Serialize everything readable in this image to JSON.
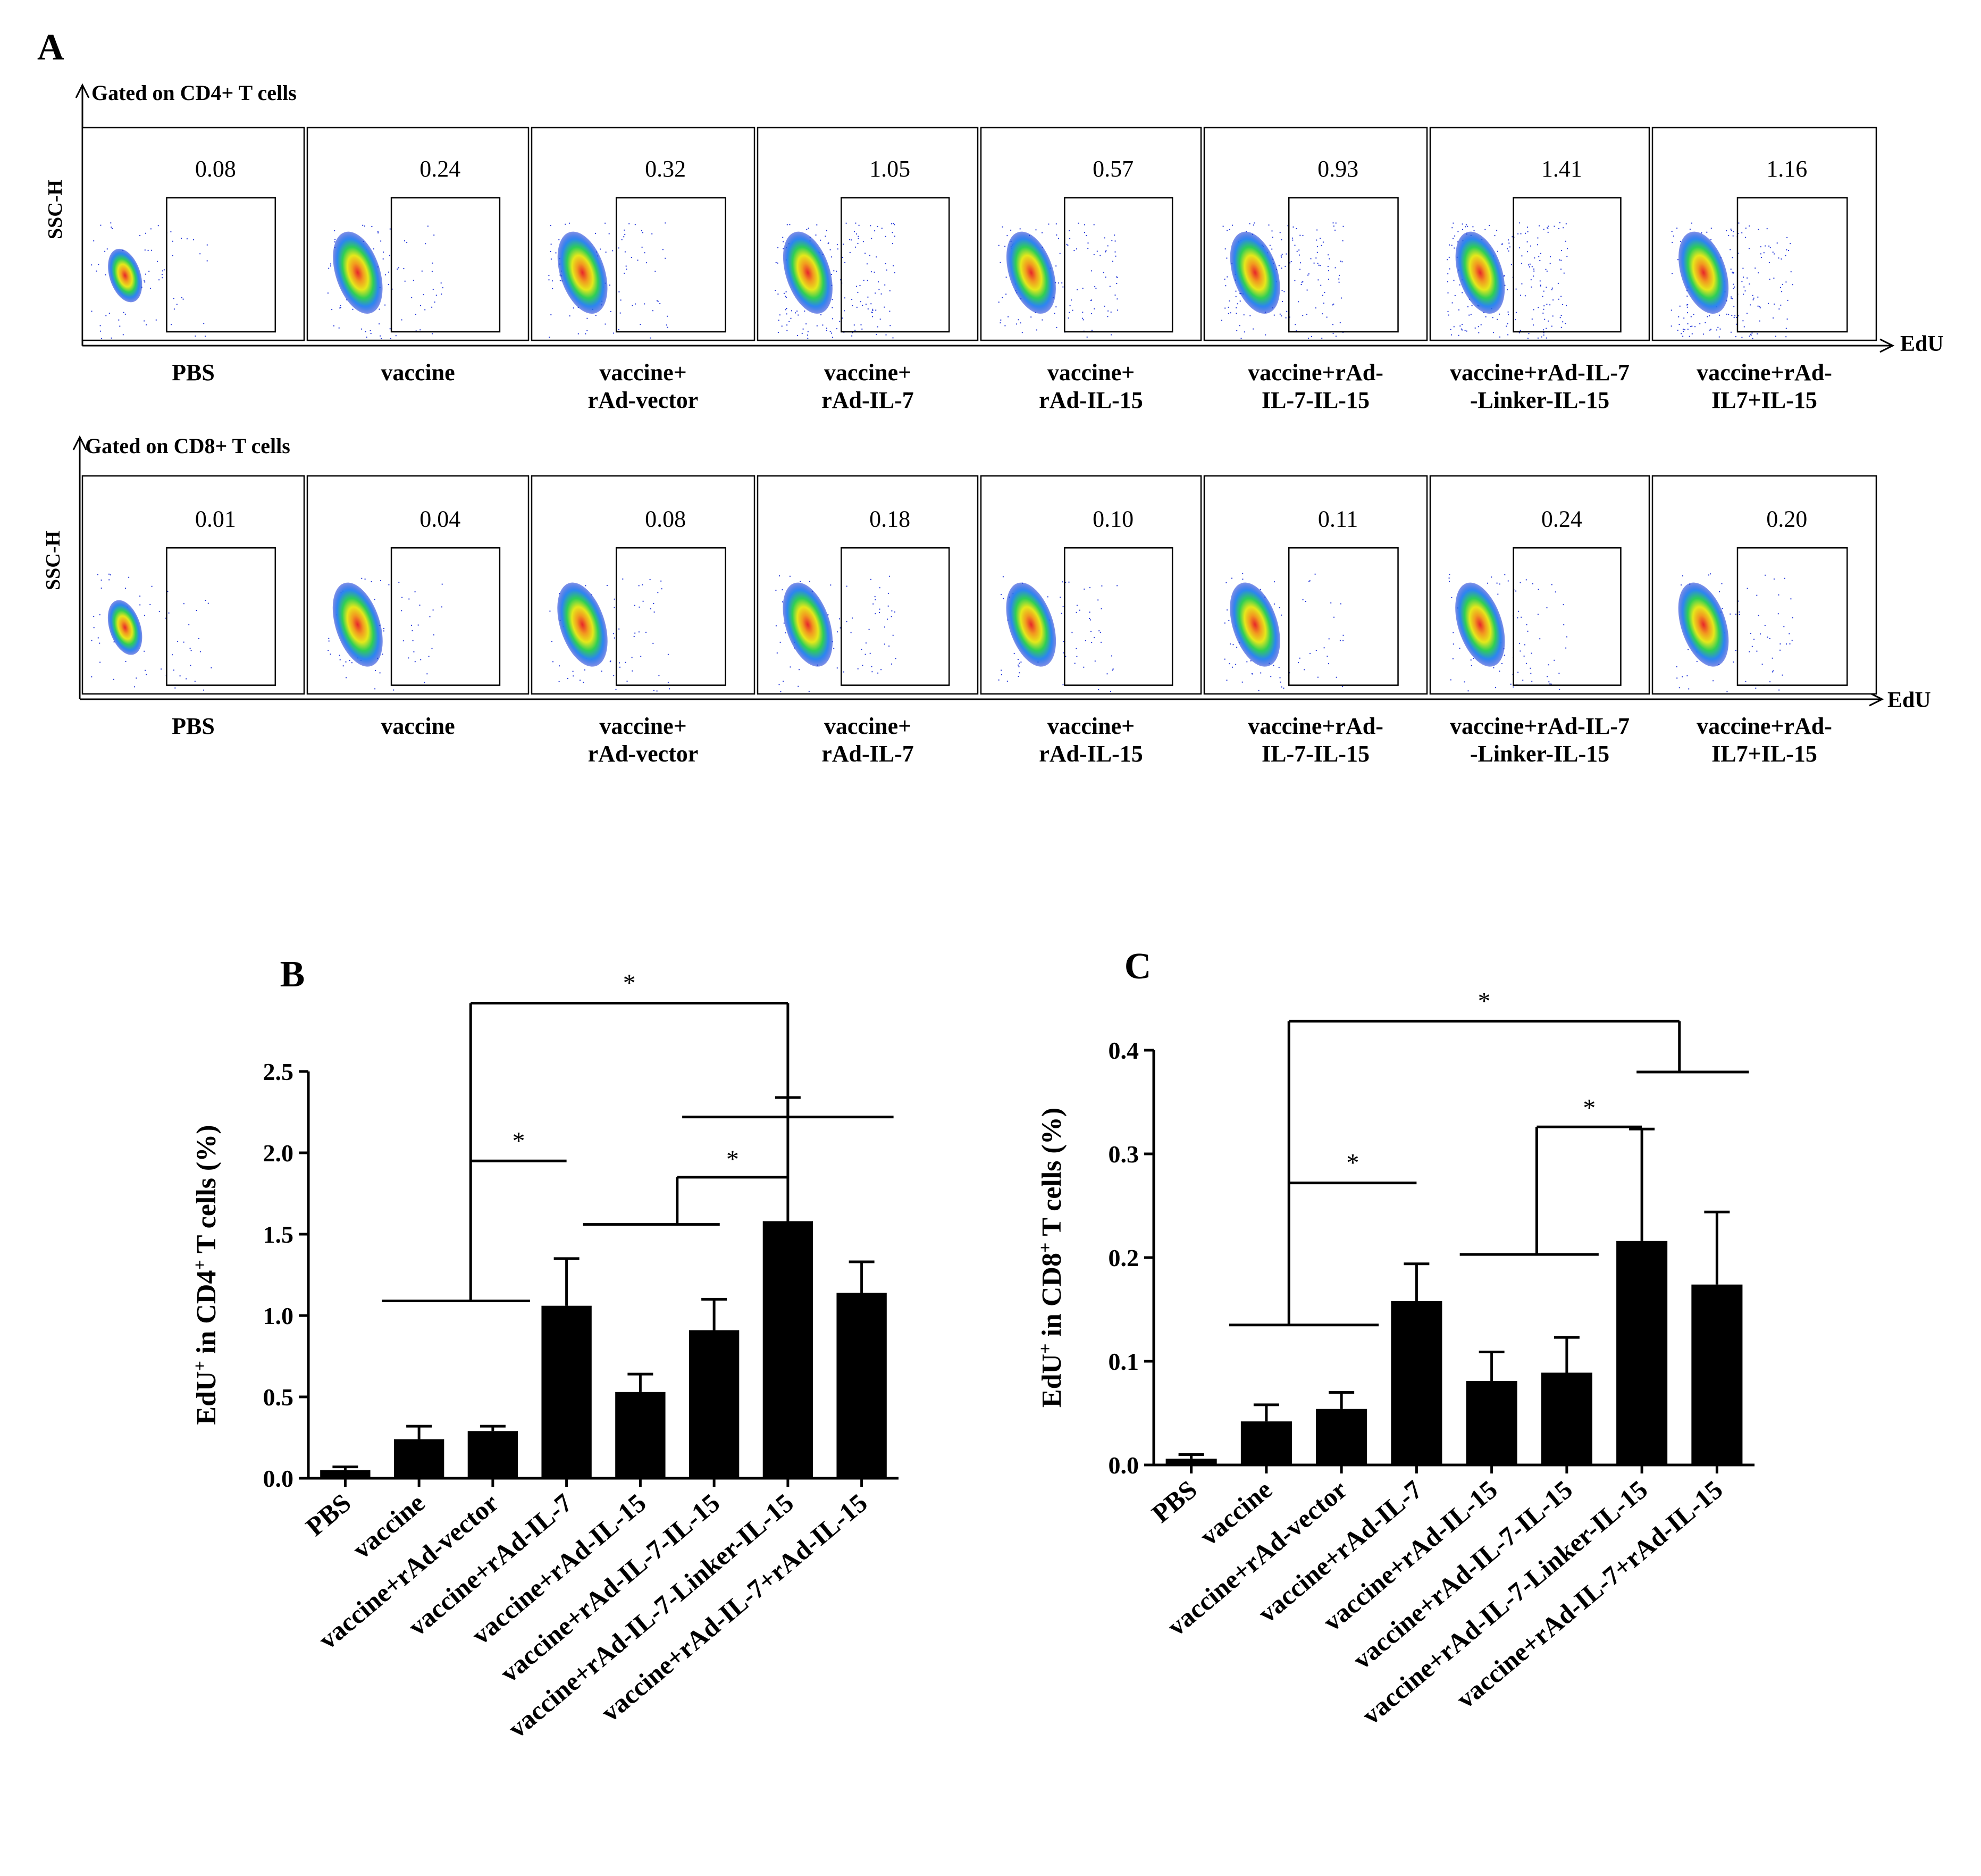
{
  "panelA": {
    "letter": "A",
    "x_axis_label": "EdU",
    "y_axis_label_cd4": "SSC-H",
    "y_axis_label_cd8": "SSC-H",
    "cd4_title": "Gated on CD4+ T cells",
    "cd8_title": "Gated on CD8+ T cells",
    "cd4_groups": [
      {
        "line1": "PBS",
        "line2": ""
      },
      {
        "line1": "vaccine",
        "line2": ""
      },
      {
        "line1": "vaccine+",
        "line2": "rAd-vector"
      },
      {
        "line1": "vaccine+",
        "line2": "rAd-IL-7"
      },
      {
        "line1": "vaccine+",
        "line2": "rAd-IL-15"
      },
      {
        "line1": "vaccine+rAd-",
        "line2": "IL-7-IL-15"
      },
      {
        "line1": "vaccine+rAd-IL-7",
        "line2": "-Linker-IL-15"
      },
      {
        "line1": "vaccine+rAd-",
        "line2": "IL7+IL-15"
      }
    ],
    "cd8_groups": [
      {
        "line1": "PBS",
        "line2": ""
      },
      {
        "line1": "vaccine",
        "line2": ""
      },
      {
        "line1": "vaccine+",
        "line2": "rAd-vector"
      },
      {
        "line1": "vaccine+",
        "line2": "rAd-IL-7"
      },
      {
        "line1": "vaccine+",
        "line2": "rAd-IL-15"
      },
      {
        "line1": "vaccine+rAd-",
        "line2": "IL-7-IL-15"
      },
      {
        "line1": "vaccine+rAd-IL-7",
        "line2": "-Linker-IL-15"
      },
      {
        "line1": "vaccine+rAd-",
        "line2": "IL7+IL-15"
      }
    ],
    "cd4_percent": [
      "0.08",
      "0.24",
      "0.32",
      "1.05",
      "0.57",
      "0.93",
      "1.41",
      "1.16"
    ],
    "cd8_percent": [
      "0.01",
      "0.04",
      "0.08",
      "0.18",
      "0.10",
      "0.11",
      "0.24",
      "0.20"
    ]
  },
  "chart_data": [
    {
      "type": "bar",
      "panel": "B",
      "ylabel": "EdU+ in CD4+ T cells (%)",
      "ylim": [
        0,
        2.5
      ],
      "yticks": [
        "0.0",
        "0.5",
        "1.0",
        "1.5",
        "2.0",
        "2.5"
      ],
      "categories": [
        "PBS",
        "vaccine",
        "vaccine+rAd-vector",
        "vaccine+rAd-IL-7",
        "vaccine+rAd-IL-15",
        "vaccine+rAd-IL-7-IL-15",
        "vaccine+rAd-IL-7-Linker-IL-15",
        "vaccine+rAd-IL-7+rAd-IL-15"
      ],
      "values": [
        0.05,
        0.24,
        0.29,
        1.06,
        0.53,
        0.91,
        1.58,
        1.14
      ],
      "error": [
        0.02,
        0.08,
        0.03,
        0.29,
        0.11,
        0.19,
        0.76,
        0.19
      ],
      "significance": "*"
    },
    {
      "type": "bar",
      "panel": "C",
      "ylabel": "EdU+ in CD8+ T cells (%)",
      "ylim": [
        0,
        0.4
      ],
      "yticks": [
        "0.0",
        "0.1",
        "0.2",
        "0.3",
        "0.4"
      ],
      "categories": [
        "PBS",
        "vaccine",
        "vaccine+rAd-vector",
        "vaccine+rAd-IL-7",
        "vaccine+rAd-IL-15",
        "vaccine+rAd-IL-7-IL-15",
        "vaccine+rAd-IL-7-Linker-IL-15",
        "vaccine+rAd-IL-7+rAd-IL-15"
      ],
      "values": [
        0.006,
        0.042,
        0.054,
        0.158,
        0.081,
        0.089,
        0.216,
        0.174
      ],
      "error": [
        0.004,
        0.016,
        0.016,
        0.036,
        0.028,
        0.034,
        0.108,
        0.07
      ],
      "significance": "*"
    }
  ]
}
